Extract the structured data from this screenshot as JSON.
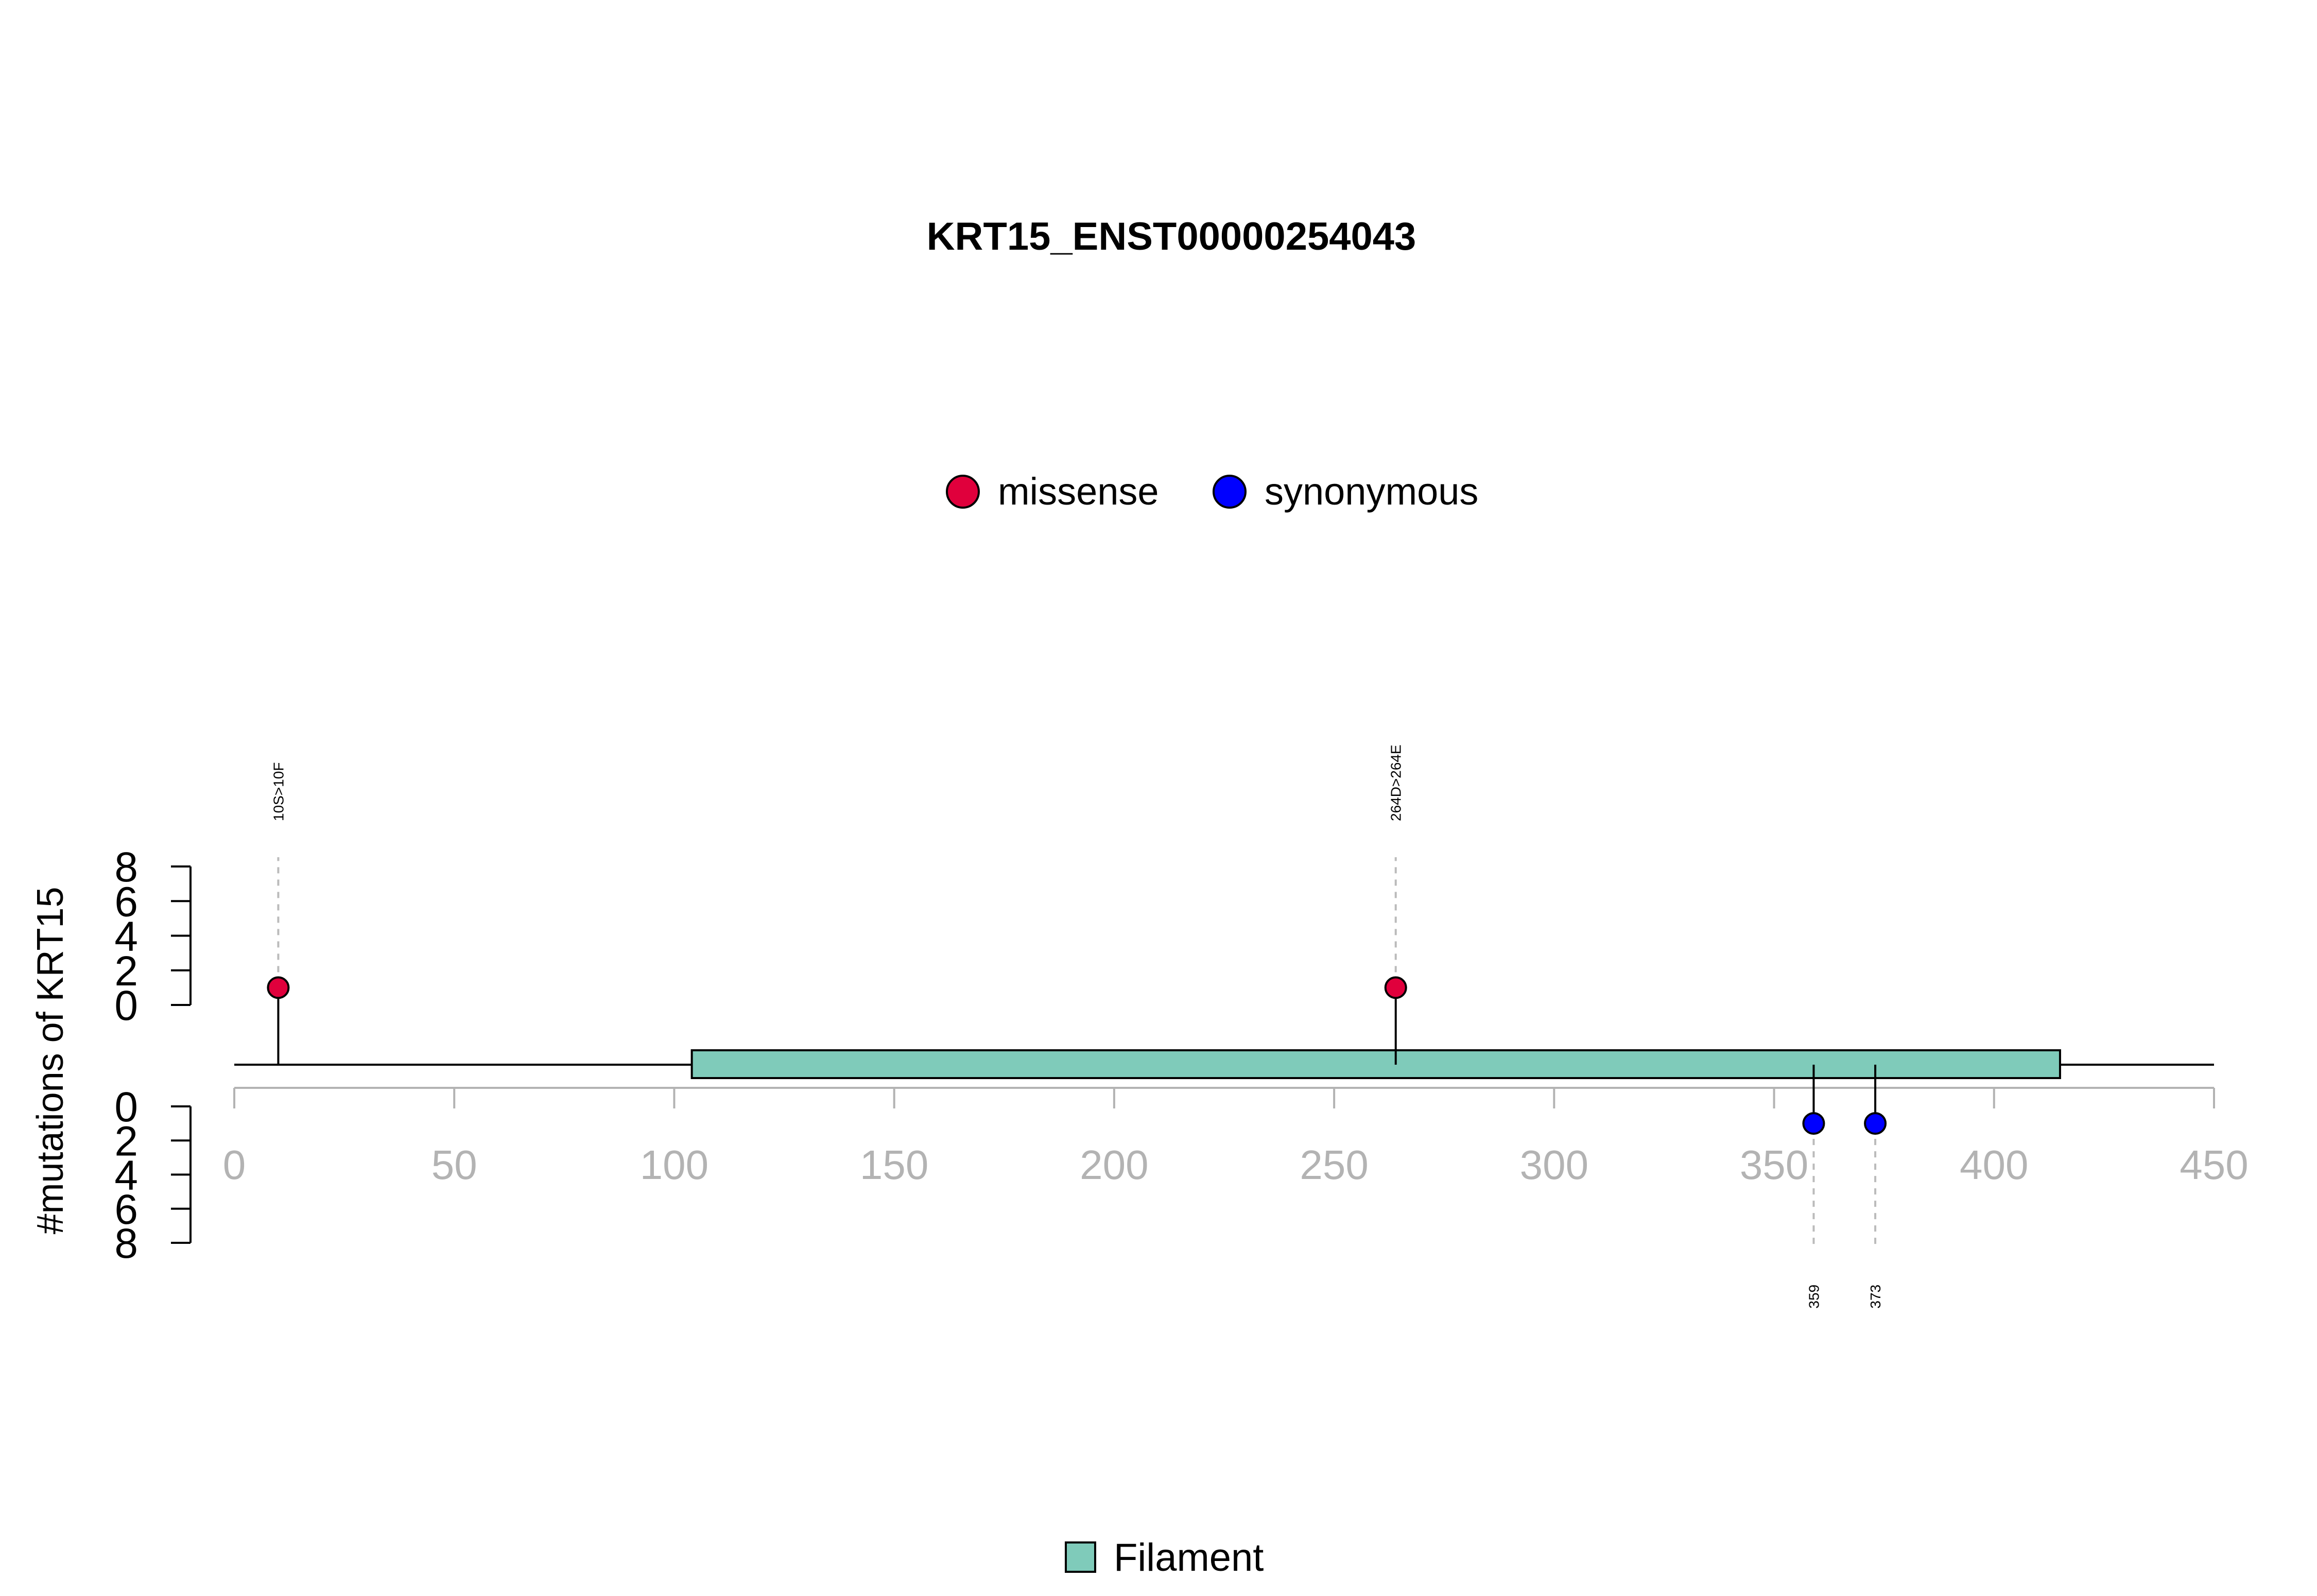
{
  "chart_data": {
    "type": "lollipop",
    "title": "KRT15_ENST00000254043",
    "ylabel": "#mutations of KRT15",
    "xlim": [
      0,
      450
    ],
    "x_ticks": [
      0,
      50,
      100,
      150,
      200,
      250,
      300,
      350,
      400,
      450
    ],
    "ylim_upper": [
      0,
      8
    ],
    "ylim_lower": [
      0,
      8
    ],
    "y_ticks": [
      0,
      2,
      4,
      6,
      8
    ],
    "mutation_types": [
      {
        "name": "missense",
        "color": "#e0003c"
      },
      {
        "name": "synonymous",
        "color": "#0000ff"
      }
    ],
    "mutations": [
      {
        "position": 10,
        "count": 1,
        "type": "missense",
        "label": "10S>10F",
        "side": "top"
      },
      {
        "position": 264,
        "count": 1,
        "type": "missense",
        "label": "264D>264E",
        "side": "top"
      },
      {
        "position": 359,
        "count": 1,
        "type": "synonymous",
        "label": "359",
        "side": "bottom"
      },
      {
        "position": 373,
        "count": 1,
        "type": "synonymous",
        "label": "373",
        "side": "bottom"
      }
    ],
    "domains": [
      {
        "name": "Filament",
        "start": 104,
        "end": 415,
        "color": "#7fcbba"
      }
    ],
    "protein_length": 450
  }
}
